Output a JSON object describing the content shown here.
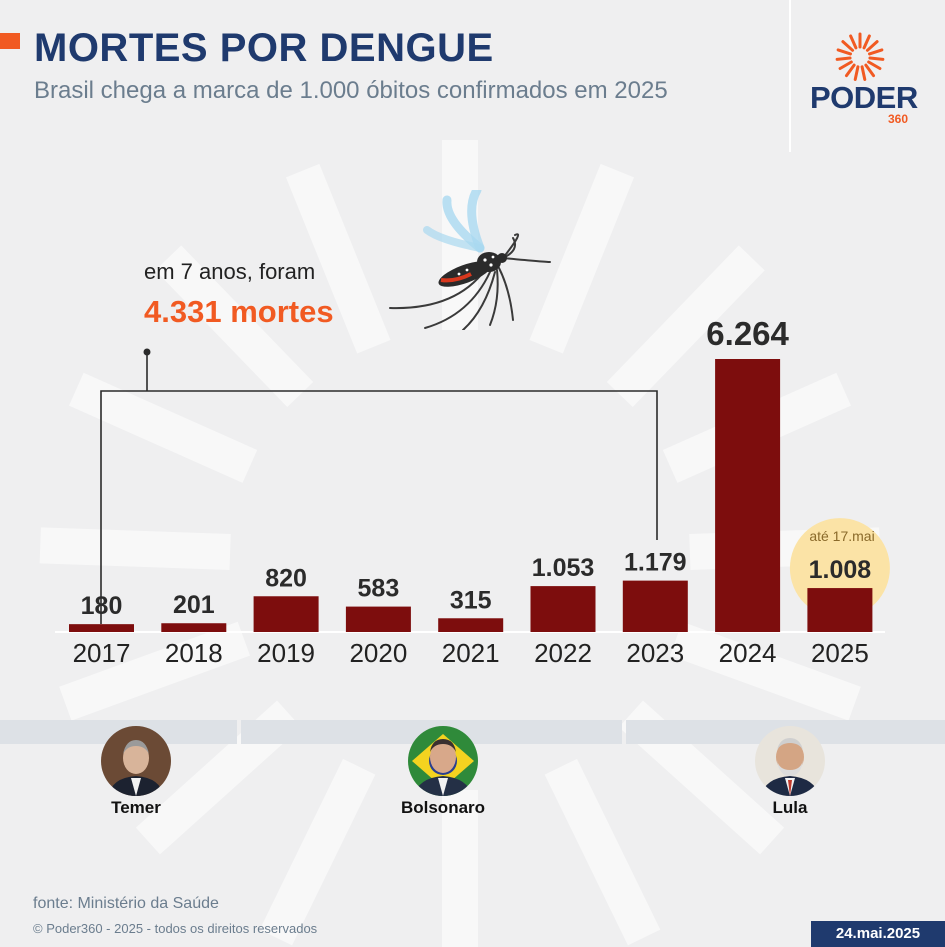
{
  "header": {
    "title": "MORTES POR DENGUE",
    "subtitle": "Brasil chega a marca de 1.000 óbitos confirmados em 2025"
  },
  "brand": {
    "name": "PODER",
    "number": "360"
  },
  "colors": {
    "bar": "#7d0d0d",
    "accent": "#f15a22",
    "navy": "#1f3a6e",
    "highlight": "#fbe3a6"
  },
  "icons": [
    "mosquito-icon",
    "sunburst-logo-icon"
  ],
  "annotation": {
    "line1": "em 7 anos, foram",
    "line2": "4.331 mortes"
  },
  "chart_data": {
    "type": "bar",
    "title": "MORTES POR DENGUE",
    "categories": [
      "2017",
      "2018",
      "2019",
      "2020",
      "2021",
      "2022",
      "2023",
      "2024",
      "2025"
    ],
    "values": [
      180,
      201,
      820,
      583,
      315,
      1053,
      1179,
      6264,
      1008
    ],
    "labels": [
      "180",
      "201",
      "820",
      "583",
      "315",
      "1.053",
      "1.179",
      "6.264",
      "1.008"
    ],
    "highlight_category": "2025",
    "note_2025": "até 17.mai",
    "grid": false
  },
  "presidents": [
    {
      "name": "Temer"
    },
    {
      "name": "Bolsonaro"
    },
    {
      "name": "Lula"
    }
  ],
  "footer": {
    "source": "fonte: Ministério da Saúde",
    "copyright": "© Poder360 - 2025 - todos os direitos reservados",
    "date": "24.mai.2025"
  }
}
